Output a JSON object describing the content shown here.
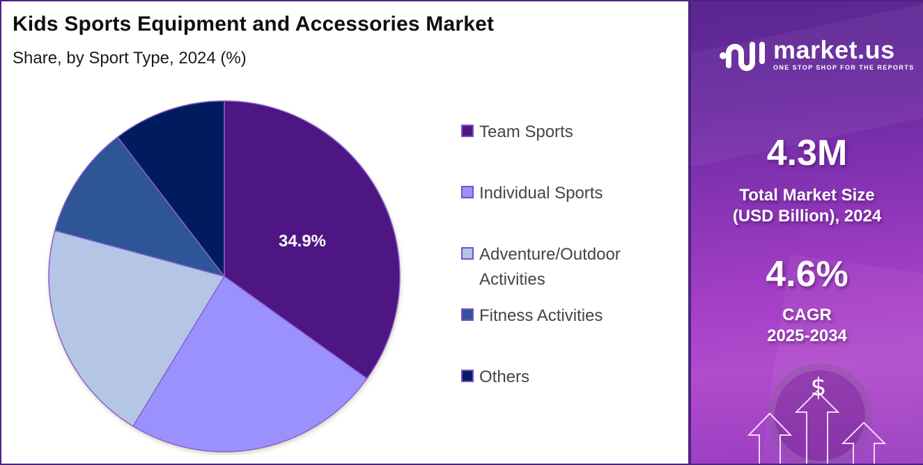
{
  "header": {
    "title": "Kids Sports Equipment and Accessories Market",
    "subtitle": "Share, by Sport Type, 2024 (%)"
  },
  "pie": {
    "highlight_label": "34.9%"
  },
  "legend": {
    "items": [
      {
        "label": "Team Sports",
        "color": "#4e1782"
      },
      {
        "label": "Individual Sports",
        "color": "#9b91fc"
      },
      {
        "label": "Adventure/Outdoor Activities",
        "color": "#b4c5e6"
      },
      {
        "label": "Fitness Activities",
        "color": "#2f5597"
      },
      {
        "label": "Others",
        "color": "#051e5e"
      }
    ]
  },
  "panel": {
    "logo_name": "market.us",
    "logo_tagline": "ONE STOP SHOP FOR THE REPORTS",
    "market_size_value": "4.3M",
    "market_size_label_line1": "Total Market Size",
    "market_size_label_line2": "(USD Billion), 2024",
    "cagr_value": "4.6%",
    "cagr_label_line1": "CAGR",
    "cagr_label_line2": "2025-2034",
    "dollar_symbol": "$",
    "background_color": "#8b35b8",
    "border_color": "#4b2382"
  },
  "chart_data": {
    "type": "pie",
    "title": "Kids Sports Equipment and Accessories Market",
    "subtitle": "Share, by Sport Type, 2024 (%)",
    "categories": [
      "Team Sports",
      "Individual Sports",
      "Adventure/Outdoor Activities",
      "Fitness Activities",
      "Others"
    ],
    "values": [
      34.9,
      23.8,
      20.5,
      10.4,
      10.4
    ],
    "colors": [
      "#4e1782",
      "#9b91fc",
      "#b4c5e6",
      "#2f5597",
      "#051e5e"
    ],
    "data_labels": {
      "Team Sports": "34.9%"
    },
    "start_angle": "12 o'clock, clockwise",
    "legend_position": "right",
    "summary": {
      "market_size_2024": "4.3M",
      "market_size_unit": "USD Billion",
      "cagr_2025_2034": "4.6%"
    }
  }
}
